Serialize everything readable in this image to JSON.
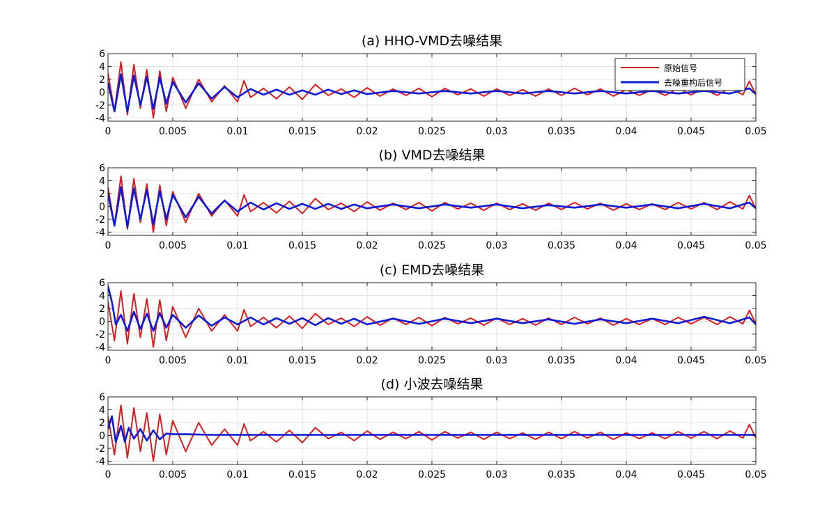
{
  "figure": {
    "colors": {
      "original": "#d81e1e",
      "denoised": "#0b1ad6",
      "grid": "#e1e1e1",
      "axis": "#262626"
    },
    "legend": {
      "entries": [
        "原始信号",
        "去噪重构后信号"
      ],
      "placement": "top-right",
      "panel": 0
    }
  },
  "chart_data": [
    {
      "type": "line",
      "title": "(a) HHO-VMD去噪结果",
      "xlim": [
        0,
        0.05
      ],
      "ylim": [
        -4.5,
        6
      ],
      "xticks": [
        0,
        0.005,
        0.01,
        0.015,
        0.02,
        0.025,
        0.03,
        0.035,
        0.04,
        0.045,
        0.05
      ],
      "xtick_labels": [
        "0",
        "0.005",
        "0.01",
        "0.015",
        "0.02",
        "0.025",
        "0.03",
        "0.035",
        "0.04",
        "0.045",
        "0.05"
      ],
      "yticks": [
        -4,
        -2,
        0,
        2,
        4,
        6
      ],
      "ytick_labels": [
        "-4",
        "-2",
        "0",
        "2",
        "4",
        "6"
      ],
      "grid": true,
      "series": [
        {
          "name": "原始信号",
          "color": "#d81e1e",
          "x": [
            0,
            0.0005,
            0.001,
            0.0015,
            0.002,
            0.0025,
            0.003,
            0.0035,
            0.004,
            0.0045,
            0.005,
            0.006,
            0.007,
            0.008,
            0.009,
            0.01,
            0.0105,
            0.011,
            0.012,
            0.013,
            0.014,
            0.015,
            0.016,
            0.017,
            0.018,
            0.019,
            0.02,
            0.021,
            0.022,
            0.023,
            0.024,
            0.025,
            0.026,
            0.027,
            0.028,
            0.029,
            0.03,
            0.031,
            0.032,
            0.033,
            0.034,
            0.035,
            0.036,
            0.037,
            0.038,
            0.039,
            0.04,
            0.041,
            0.042,
            0.043,
            0.044,
            0.045,
            0.046,
            0.047,
            0.048,
            0.049,
            0.0495,
            0.05
          ],
          "y": [
            3,
            -3,
            4.7,
            -3.5,
            4.3,
            -2.5,
            3.5,
            -4,
            3.3,
            -3,
            2.3,
            -2.5,
            2,
            -1.5,
            1,
            -1.5,
            1.8,
            -0.8,
            0.6,
            -1,
            0.8,
            -1.1,
            1.2,
            -0.5,
            0.5,
            -0.8,
            0.7,
            -0.6,
            0.5,
            -0.5,
            0.6,
            -0.7,
            0.6,
            -0.4,
            0.5,
            -0.6,
            0.5,
            -0.5,
            0.4,
            -0.6,
            0.5,
            -0.5,
            0.6,
            -0.4,
            0.5,
            -0.6,
            0.4,
            -0.5,
            0.4,
            -0.5,
            0.6,
            -0.4,
            0.6,
            -0.5,
            0.7,
            -0.4,
            1.7,
            -0.4
          ]
        },
        {
          "name": "去噪重构后信号",
          "color": "#0b1ad6",
          "x": [
            0,
            0.0005,
            0.001,
            0.0015,
            0.002,
            0.0025,
            0.003,
            0.0035,
            0.004,
            0.0045,
            0.005,
            0.006,
            0.007,
            0.008,
            0.009,
            0.01,
            0.011,
            0.012,
            0.013,
            0.014,
            0.015,
            0.016,
            0.017,
            0.018,
            0.019,
            0.02,
            0.022,
            0.024,
            0.026,
            0.028,
            0.03,
            0.032,
            0.034,
            0.036,
            0.038,
            0.04,
            0.042,
            0.044,
            0.046,
            0.048,
            0.0495,
            0.05
          ],
          "y": [
            1.5,
            -3,
            2.8,
            -3,
            2.6,
            -2,
            2.4,
            -2.6,
            2.3,
            -1.8,
            1.6,
            -1.6,
            1.4,
            -1,
            0.8,
            -0.8,
            0.5,
            -0.4,
            0.4,
            -0.4,
            0.3,
            -0.4,
            0.4,
            -0.3,
            0.3,
            -0.3,
            0.2,
            -0.2,
            0.2,
            -0.2,
            0.2,
            -0.2,
            0.2,
            -0.2,
            0.2,
            -0.2,
            0.2,
            -0.2,
            0.2,
            -0.2,
            0.6,
            -0.3
          ]
        }
      ]
    },
    {
      "type": "line",
      "title": "(b) VMD去噪结果",
      "xlim": [
        0,
        0.05
      ],
      "ylim": [
        -4.5,
        6
      ],
      "xticks": [
        0,
        0.005,
        0.01,
        0.015,
        0.02,
        0.025,
        0.03,
        0.035,
        0.04,
        0.045,
        0.05
      ],
      "xtick_labels": [
        "0",
        "0.005",
        "0.01",
        "0.015",
        "0.02",
        "0.025",
        "0.03",
        "0.035",
        "0.04",
        "0.045",
        "0.05"
      ],
      "yticks": [
        -4,
        -2,
        0,
        2,
        4,
        6
      ],
      "ytick_labels": [
        "-4",
        "-2",
        "0",
        "2",
        "4",
        "6"
      ],
      "grid": true,
      "series": [
        {
          "name": "原始信号",
          "color": "#d81e1e",
          "x": [
            0,
            0.0005,
            0.001,
            0.0015,
            0.002,
            0.0025,
            0.003,
            0.0035,
            0.004,
            0.0045,
            0.005,
            0.006,
            0.007,
            0.008,
            0.009,
            0.01,
            0.0105,
            0.011,
            0.012,
            0.013,
            0.014,
            0.015,
            0.016,
            0.017,
            0.018,
            0.019,
            0.02,
            0.021,
            0.022,
            0.023,
            0.024,
            0.025,
            0.026,
            0.027,
            0.028,
            0.029,
            0.03,
            0.031,
            0.032,
            0.033,
            0.034,
            0.035,
            0.036,
            0.037,
            0.038,
            0.039,
            0.04,
            0.041,
            0.042,
            0.043,
            0.044,
            0.045,
            0.046,
            0.047,
            0.048,
            0.049,
            0.0495,
            0.05
          ],
          "y": [
            3,
            -3,
            4.7,
            -3.5,
            4.3,
            -2.5,
            3.5,
            -4,
            3.3,
            -3,
            2.3,
            -2.5,
            2,
            -1.5,
            1,
            -1.5,
            1.8,
            -0.8,
            0.6,
            -1,
            0.8,
            -1.1,
            1.2,
            -0.5,
            0.5,
            -0.8,
            0.7,
            -0.6,
            0.5,
            -0.5,
            0.6,
            -0.7,
            0.6,
            -0.4,
            0.5,
            -0.6,
            0.5,
            -0.5,
            0.4,
            -0.6,
            0.5,
            -0.5,
            0.6,
            -0.4,
            0.5,
            -0.6,
            0.4,
            -0.5,
            0.4,
            -0.5,
            0.6,
            -0.4,
            0.6,
            -0.5,
            0.7,
            -0.4,
            1.7,
            -0.4
          ]
        },
        {
          "name": "去噪重构后信号",
          "color": "#0b1ad6",
          "x": [
            0,
            0.0005,
            0.001,
            0.0015,
            0.002,
            0.0025,
            0.003,
            0.0035,
            0.004,
            0.0045,
            0.005,
            0.006,
            0.007,
            0.008,
            0.009,
            0.01,
            0.011,
            0.012,
            0.013,
            0.014,
            0.015,
            0.016,
            0.017,
            0.018,
            0.019,
            0.02,
            0.022,
            0.024,
            0.026,
            0.028,
            0.03,
            0.032,
            0.034,
            0.036,
            0.038,
            0.04,
            0.042,
            0.044,
            0.046,
            0.048,
            0.0495,
            0.05
          ],
          "y": [
            2,
            -3,
            3,
            -3.2,
            2.8,
            -2,
            2.6,
            -2.8,
            2.4,
            -2,
            1.8,
            -1.7,
            1.5,
            -1.1,
            0.9,
            -0.8,
            0.6,
            -0.5,
            0.5,
            -0.4,
            0.4,
            -0.4,
            0.4,
            -0.4,
            0.3,
            -0.3,
            0.3,
            -0.3,
            0.3,
            -0.2,
            0.3,
            -0.3,
            0.2,
            -0.2,
            0.3,
            -0.2,
            0.3,
            -0.3,
            0.4,
            -0.3,
            0.6,
            -0.3
          ]
        }
      ]
    },
    {
      "type": "line",
      "title": "(c) EMD去噪结果",
      "xlim": [
        0,
        0.05
      ],
      "ylim": [
        -4.5,
        6
      ],
      "xticks": [
        0,
        0.005,
        0.01,
        0.015,
        0.02,
        0.025,
        0.03,
        0.035,
        0.04,
        0.045,
        0.05
      ],
      "xtick_labels": [
        "0",
        "0.005",
        "0.01",
        "0.015",
        "0.02",
        "0.025",
        "0.03",
        "0.035",
        "0.04",
        "0.045",
        "0.05"
      ],
      "yticks": [
        -4,
        -2,
        0,
        2,
        4,
        6
      ],
      "ytick_labels": [
        "-4",
        "-2",
        "0",
        "2",
        "4",
        "6"
      ],
      "grid": true,
      "series": [
        {
          "name": "原始信号",
          "color": "#d81e1e",
          "x": [
            0,
            0.0005,
            0.001,
            0.0015,
            0.002,
            0.0025,
            0.003,
            0.0035,
            0.004,
            0.0045,
            0.005,
            0.006,
            0.007,
            0.008,
            0.009,
            0.01,
            0.0105,
            0.011,
            0.012,
            0.013,
            0.014,
            0.015,
            0.016,
            0.017,
            0.018,
            0.019,
            0.02,
            0.021,
            0.022,
            0.023,
            0.024,
            0.025,
            0.026,
            0.027,
            0.028,
            0.029,
            0.03,
            0.031,
            0.032,
            0.033,
            0.034,
            0.035,
            0.036,
            0.037,
            0.038,
            0.039,
            0.04,
            0.041,
            0.042,
            0.043,
            0.044,
            0.045,
            0.046,
            0.047,
            0.048,
            0.049,
            0.0495,
            0.05
          ],
          "y": [
            3,
            -3,
            4.7,
            -3.5,
            4.3,
            -2.5,
            3.5,
            -4,
            3.3,
            -3,
            2.3,
            -2.5,
            2,
            -1.5,
            1,
            -1.5,
            1.8,
            -0.8,
            0.6,
            -1,
            0.8,
            -1.1,
            1.2,
            -0.5,
            0.5,
            -0.8,
            0.7,
            -0.6,
            0.5,
            -0.5,
            0.6,
            -0.7,
            0.6,
            -0.4,
            0.5,
            -0.6,
            0.5,
            -0.5,
            0.4,
            -0.6,
            0.5,
            -0.5,
            0.6,
            -0.4,
            0.5,
            -0.6,
            0.4,
            -0.5,
            0.4,
            -0.5,
            0.6,
            -0.4,
            0.6,
            -0.5,
            0.7,
            -0.4,
            1.7,
            -0.4
          ]
        },
        {
          "name": "去噪重构后信号",
          "color": "#0b1ad6",
          "x": [
            0,
            0.0003,
            0.0006,
            0.001,
            0.0015,
            0.002,
            0.0025,
            0.003,
            0.0035,
            0.004,
            0.0045,
            0.005,
            0.006,
            0.007,
            0.008,
            0.009,
            0.01,
            0.011,
            0.012,
            0.013,
            0.014,
            0.015,
            0.016,
            0.017,
            0.018,
            0.019,
            0.02,
            0.022,
            0.024,
            0.026,
            0.028,
            0.03,
            0.032,
            0.034,
            0.036,
            0.038,
            0.04,
            0.042,
            0.044,
            0.046,
            0.048,
            0.0495,
            0.05
          ],
          "y": [
            5.5,
            3,
            -0.5,
            1,
            -1.5,
            1.5,
            -1.2,
            1.2,
            -1.5,
            1.3,
            -1,
            1,
            -1,
            0.9,
            -0.7,
            0.6,
            -0.5,
            0.6,
            -0.5,
            0.5,
            -0.4,
            0.5,
            -0.6,
            0.5,
            -0.4,
            0.4,
            -0.5,
            0.4,
            -0.4,
            0.4,
            -0.3,
            0.4,
            -0.3,
            0.3,
            -0.4,
            0.3,
            -0.3,
            0.4,
            -0.3,
            0.7,
            -0.3,
            0.6,
            -0.5
          ]
        }
      ]
    },
    {
      "type": "line",
      "title": "(d) 小波去噪结果",
      "xlim": [
        0,
        0.05
      ],
      "ylim": [
        -4.5,
        6
      ],
      "xticks": [
        0,
        0.005,
        0.01,
        0.015,
        0.02,
        0.025,
        0.03,
        0.035,
        0.04,
        0.045,
        0.05
      ],
      "xtick_labels": [
        "0",
        "0.005",
        "0.01",
        "0.015",
        "0.02",
        "0.025",
        "0.03",
        "0.035",
        "0.04",
        "0.045",
        "0.05"
      ],
      "yticks": [
        -4,
        -2,
        0,
        2,
        4,
        6
      ],
      "ytick_labels": [
        "-4",
        "-2",
        "0",
        "2",
        "4",
        "6"
      ],
      "grid": true,
      "series": [
        {
          "name": "原始信号",
          "color": "#d81e1e",
          "x": [
            0,
            0.0005,
            0.001,
            0.0015,
            0.002,
            0.0025,
            0.003,
            0.0035,
            0.004,
            0.0045,
            0.005,
            0.006,
            0.007,
            0.008,
            0.009,
            0.01,
            0.0105,
            0.011,
            0.012,
            0.013,
            0.014,
            0.015,
            0.016,
            0.017,
            0.018,
            0.019,
            0.02,
            0.021,
            0.022,
            0.023,
            0.024,
            0.025,
            0.026,
            0.027,
            0.028,
            0.029,
            0.03,
            0.031,
            0.032,
            0.033,
            0.034,
            0.035,
            0.036,
            0.037,
            0.038,
            0.039,
            0.04,
            0.041,
            0.042,
            0.043,
            0.044,
            0.045,
            0.046,
            0.047,
            0.048,
            0.049,
            0.0495,
            0.05
          ],
          "y": [
            3,
            -3,
            4.7,
            -3.5,
            4.3,
            -2.5,
            3.5,
            -4,
            3.3,
            -3,
            2.3,
            -2.5,
            2,
            -1.5,
            1,
            -1.5,
            1.8,
            -0.8,
            0.6,
            -1,
            0.8,
            -1.1,
            1.2,
            -0.5,
            0.5,
            -0.8,
            0.7,
            -0.6,
            0.5,
            -0.5,
            0.6,
            -0.7,
            0.6,
            -0.4,
            0.5,
            -0.6,
            0.5,
            -0.5,
            0.4,
            -0.6,
            0.5,
            -0.5,
            0.6,
            -0.4,
            0.5,
            -0.6,
            0.4,
            -0.5,
            0.4,
            -0.5,
            0.6,
            -0.4,
            0.6,
            -0.5,
            0.7,
            -0.4,
            1.7,
            -0.4
          ]
        },
        {
          "name": "去噪重构后信号",
          "color": "#0b1ad6",
          "x": [
            0,
            0.0003,
            0.0006,
            0.001,
            0.0013,
            0.0016,
            0.002,
            0.0025,
            0.003,
            0.0035,
            0.004,
            0.0045,
            0.005,
            0.006,
            0.008,
            0.01,
            0.015,
            0.02,
            0.025,
            0.03,
            0.035,
            0.04,
            0.045,
            0.05
          ],
          "y": [
            1,
            3,
            -1,
            1.5,
            -1,
            1.2,
            -0.5,
            1,
            -0.8,
            0.8,
            -0.6,
            0.3,
            0.2,
            0.2,
            0.1,
            0.1,
            0.1,
            0.1,
            0.1,
            0.1,
            0.1,
            0.1,
            0.1,
            0.1
          ]
        }
      ]
    }
  ]
}
